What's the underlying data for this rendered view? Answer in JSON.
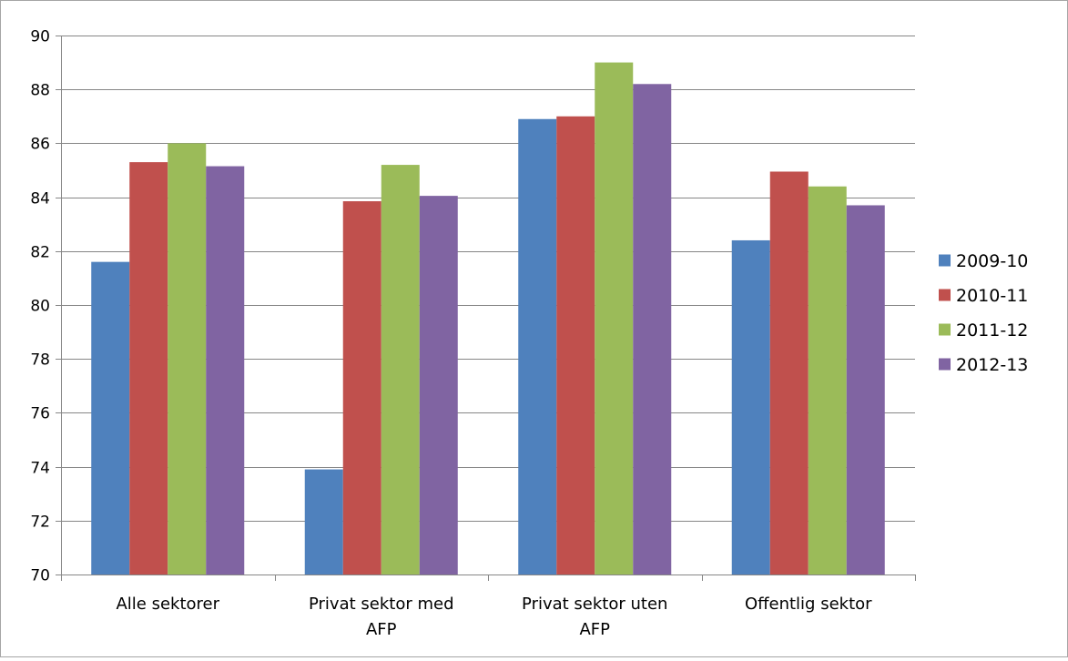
{
  "chart_data": {
    "type": "bar",
    "title": "",
    "xlabel": "",
    "ylabel": "",
    "ylim": [
      70,
      90
    ],
    "yticks": [
      70,
      72,
      74,
      76,
      78,
      80,
      82,
      84,
      86,
      88,
      90
    ],
    "grid": true,
    "legend_position": "right",
    "categories": [
      [
        "Alle sektorer"
      ],
      [
        "Privat sektor med",
        "AFP"
      ],
      [
        "Privat sektor uten",
        "AFP"
      ],
      [
        "Offentlig sektor"
      ]
    ],
    "series": [
      {
        "name": "2009-10",
        "color": "#4f81bd",
        "values": [
          81.6,
          73.9,
          86.9,
          82.4
        ]
      },
      {
        "name": "2010-11",
        "color": "#c0504d",
        "values": [
          85.3,
          83.85,
          87.0,
          84.95
        ]
      },
      {
        "name": "2011-12",
        "color": "#9bbb59",
        "values": [
          86.0,
          85.2,
          89.0,
          84.4
        ]
      },
      {
        "name": "2012-13",
        "color": "#8064a2",
        "values": [
          85.15,
          84.05,
          88.2,
          83.7
        ]
      }
    ]
  }
}
